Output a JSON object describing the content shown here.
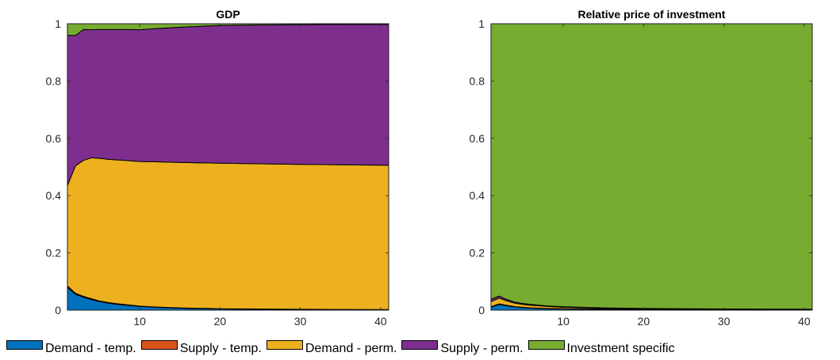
{
  "chart_data": [
    {
      "type": "area",
      "title": "GDP",
      "xlabel": "",
      "ylabel": "",
      "xlim": [
        1,
        41
      ],
      "ylim": [
        0,
        1
      ],
      "xticks": [
        10,
        20,
        30,
        40
      ],
      "yticks": [
        0,
        0.2,
        0.4,
        0.6,
        0.8,
        1
      ],
      "ytick_labels": [
        "0",
        "0.2",
        "0.4",
        "0.6",
        "0.8",
        "1"
      ],
      "x": [
        1,
        2,
        3,
        4,
        5,
        6,
        7,
        8,
        10,
        12,
        15,
        20,
        25,
        30,
        35,
        41
      ],
      "series": [
        {
          "name": "Demand - temp.",
          "color": "#0072BD",
          "values": [
            0.08,
            0.055,
            0.045,
            0.037,
            0.03,
            0.025,
            0.021,
            0.018,
            0.013,
            0.01,
            0.007,
            0.004,
            0.003,
            0.002,
            0.0015,
            0.001
          ]
        },
        {
          "name": "Supply - temp.",
          "color": "#D95319",
          "values": [
            0.005,
            0.004,
            0.003,
            0.003,
            0.002,
            0.002,
            0.002,
            0.002,
            0.001,
            0.001,
            0.001,
            0.001,
            0.001,
            0.001,
            0.001,
            0.001
          ]
        },
        {
          "name": "Demand - perm.",
          "color": "#EDB120",
          "values": [
            0.35,
            0.445,
            0.475,
            0.492,
            0.498,
            0.5,
            0.502,
            0.503,
            0.505,
            0.507,
            0.508,
            0.508,
            0.507,
            0.506,
            0.505,
            0.504
          ]
        },
        {
          "name": "Supply - perm.",
          "color": "#7E2F8E",
          "values": [
            0.525,
            0.455,
            0.457,
            0.447,
            0.45,
            0.453,
            0.455,
            0.457,
            0.46,
            0.465,
            0.472,
            0.481,
            0.485,
            0.488,
            0.49,
            0.492
          ]
        },
        {
          "name": "Investment specific",
          "color": "#77AC30",
          "values": [
            0.04,
            0.041,
            0.02,
            0.021,
            0.02,
            0.02,
            0.02,
            0.02,
            0.021,
            0.017,
            0.012,
            0.006,
            0.004,
            0.003,
            0.0025,
            0.002
          ]
        }
      ]
    },
    {
      "type": "area",
      "title": "Relative price of investment",
      "xlabel": "",
      "ylabel": "",
      "xlim": [
        1,
        41
      ],
      "ylim": [
        0,
        1
      ],
      "xticks": [
        10,
        20,
        30,
        40
      ],
      "yticks": [
        0,
        0.2,
        0.4,
        0.6,
        0.8,
        1
      ],
      "ytick_labels": [
        "0",
        "0.2",
        "0.4",
        "0.6",
        "0.8",
        "1"
      ],
      "x": [
        1,
        2,
        3,
        4,
        5,
        6,
        8,
        10,
        15,
        20,
        30,
        41
      ],
      "series": [
        {
          "name": "Demand - temp.",
          "color": "#0072BD",
          "values": [
            0.01,
            0.02,
            0.015,
            0.011,
            0.009,
            0.007,
            0.005,
            0.004,
            0.003,
            0.002,
            0.001,
            0.001
          ]
        },
        {
          "name": "Supply - temp.",
          "color": "#D95319",
          "values": [
            0.002,
            0.002,
            0.002,
            0.001,
            0.001,
            0.001,
            0.001,
            0.001,
            0.001,
            0.001,
            0.0005,
            0.0005
          ]
        },
        {
          "name": "Demand - perm.",
          "color": "#EDB120",
          "values": [
            0.018,
            0.02,
            0.015,
            0.012,
            0.01,
            0.009,
            0.007,
            0.005,
            0.003,
            0.002,
            0.0015,
            0.001
          ]
        },
        {
          "name": "Supply - perm.",
          "color": "#7E2F8E",
          "values": [
            0.008,
            0.007,
            0.005,
            0.004,
            0.003,
            0.003,
            0.002,
            0.002,
            0.001,
            0.001,
            0.001,
            0.001
          ]
        },
        {
          "name": "Investment specific",
          "color": "#77AC30",
          "values": [
            0.962,
            0.951,
            0.963,
            0.972,
            0.977,
            0.98,
            0.985,
            0.988,
            0.992,
            0.994,
            0.996,
            0.9975
          ]
        }
      ]
    }
  ],
  "legend": {
    "position": "bottom",
    "items": [
      {
        "label": "Demand - temp.",
        "color": "#0072BD"
      },
      {
        "label": "Supply - temp.",
        "color": "#D95319"
      },
      {
        "label": "Demand - perm.",
        "color": "#EDB120"
      },
      {
        "label": "Supply - perm.",
        "color": "#7E2F8E"
      },
      {
        "label": "Investment specific",
        "color": "#77AC30"
      }
    ]
  }
}
